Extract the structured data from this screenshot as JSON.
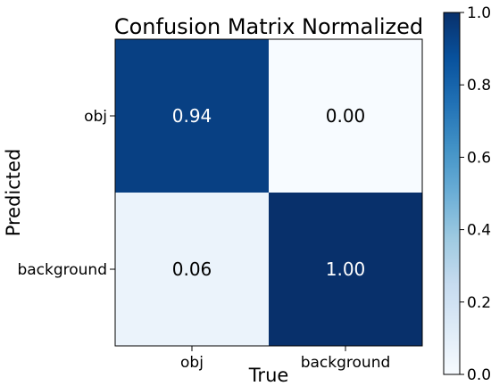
{
  "chart_data": {
    "type": "heatmap",
    "title": "Confusion Matrix Normalized",
    "xlabel": "True",
    "ylabel": "Predicted",
    "x_categories": [
      "obj",
      "background"
    ],
    "y_categories": [
      "obj",
      "background"
    ],
    "values": [
      [
        0.94,
        0.0
      ],
      [
        0.06,
        1.0
      ]
    ],
    "value_labels": [
      [
        "0.94",
        "0.00"
      ],
      [
        "0.06",
        "1.00"
      ]
    ],
    "colorbar": {
      "range": [
        0.0,
        1.0
      ],
      "ticks": [
        0.0,
        0.2,
        0.4,
        0.6,
        0.8,
        1.0
      ],
      "tick_labels": [
        "0.0",
        "0.2",
        "0.4",
        "0.6",
        "0.8",
        "1.0"
      ]
    },
    "colormap": "Blues",
    "colors": {
      "low": "#f7fbff",
      "high": "#08306b",
      "text_light": "#ffffff",
      "text_dark": "#000000"
    }
  }
}
